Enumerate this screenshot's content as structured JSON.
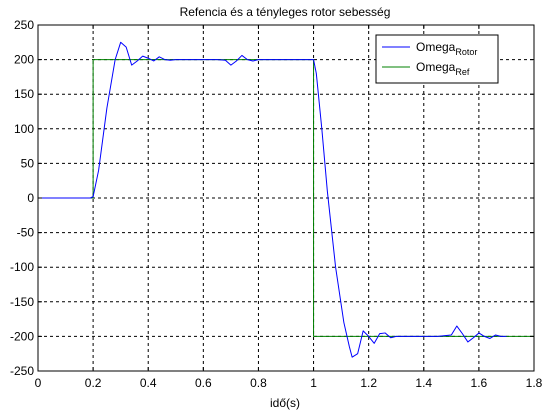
{
  "chart_data": {
    "type": "line",
    "title": "Refencia és a tényleges rotor sebesség",
    "xlabel": "idő(s)",
    "ylabel": "",
    "xlim": [
      0,
      1.8
    ],
    "ylim": [
      -250,
      250
    ],
    "xticks": [
      0,
      0.2,
      0.4,
      0.6,
      0.8,
      1,
      1.2,
      1.4,
      1.6,
      1.8
    ],
    "yticks": [
      -250,
      -200,
      -150,
      -100,
      -50,
      0,
      50,
      100,
      150,
      200,
      250
    ],
    "grid": true,
    "legend_position": "top-right",
    "series": [
      {
        "name": "Omega",
        "name_sub": "Rotor",
        "color": "#0000ff",
        "x": [
          0,
          0.19,
          0.2,
          0.22,
          0.25,
          0.28,
          0.3,
          0.32,
          0.34,
          0.36,
          0.38,
          0.4,
          0.42,
          0.44,
          0.46,
          0.48,
          0.5,
          0.55,
          0.6,
          0.65,
          0.68,
          0.7,
          0.72,
          0.74,
          0.76,
          0.78,
          0.8,
          0.82,
          0.85,
          1.0,
          1.01,
          1.03,
          1.05,
          1.08,
          1.11,
          1.13,
          1.14,
          1.16,
          1.18,
          1.2,
          1.22,
          1.24,
          1.26,
          1.28,
          1.3,
          1.32,
          1.35,
          1.4,
          1.45,
          1.5,
          1.52,
          1.54,
          1.56,
          1.58,
          1.6,
          1.62,
          1.64,
          1.66,
          1.68,
          1.7
        ],
        "y": [
          0,
          0,
          2,
          40,
          130,
          200,
          225,
          218,
          192,
          198,
          205,
          202,
          198,
          204,
          200,
          199,
          200,
          200,
          200,
          200,
          199,
          192,
          198,
          206,
          200,
          198,
          200,
          200,
          200,
          200,
          180,
          100,
          10,
          -100,
          -180,
          -215,
          -230,
          -225,
          -192,
          -200,
          -210,
          -196,
          -195,
          -202,
          -200,
          -200,
          -200,
          -200,
          -200,
          -198,
          -185,
          -196,
          -208,
          -202,
          -195,
          -200,
          -203,
          -198,
          -200,
          -200
        ]
      },
      {
        "name": "Omega",
        "name_sub": "Ref",
        "color": "#008000",
        "x": [
          0,
          0.2,
          0.2,
          1.0,
          1.0,
          1.8
        ],
        "y": [
          0,
          0,
          200,
          200,
          -200,
          -200
        ]
      }
    ]
  }
}
